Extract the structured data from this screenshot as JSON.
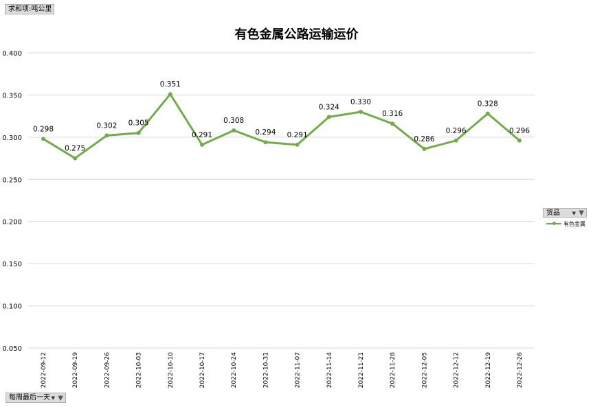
{
  "pivot": {
    "sum_field_label": "求和项:吨公里",
    "week_field_label": "每周最后一天",
    "legend_field_label": "货品"
  },
  "chart_data": {
    "type": "line",
    "title": "有色金属公路运输运价",
    "xlabel": "",
    "ylabel": "",
    "categories": [
      "2022-09-12",
      "2022-09-19",
      "2022-09-26",
      "2022-10-03",
      "2022-10-10",
      "2022-10-17",
      "2022-10-24",
      "2022-10-31",
      "2022-11-07",
      "2022-11-14",
      "2022-11-21",
      "2022-11-28",
      "2022-12-05",
      "2022-12-12",
      "2022-12-19",
      "2022-12-26"
    ],
    "series": [
      {
        "name": "有色金属",
        "values": [
          0.298,
          0.275,
          0.302,
          0.305,
          0.351,
          0.291,
          0.308,
          0.294,
          0.291,
          0.324,
          0.33,
          0.316,
          0.286,
          0.296,
          0.328,
          0.296
        ],
        "labels": [
          "0.298",
          "0.275",
          "0.302",
          "0.305",
          "0.351",
          "0.291",
          "0.308",
          "0.294",
          "0.291",
          "0.324",
          "0.330",
          "0.316",
          "0.286",
          "0.296",
          "0.328",
          "0.296"
        ],
        "color": "#70ad47"
      }
    ],
    "ylim": [
      0.05,
      0.4
    ],
    "yticks": [
      "0.050",
      "0.100",
      "0.150",
      "0.200",
      "0.250",
      "0.300",
      "0.350",
      "0.400"
    ],
    "grid": true,
    "legend": "right"
  }
}
